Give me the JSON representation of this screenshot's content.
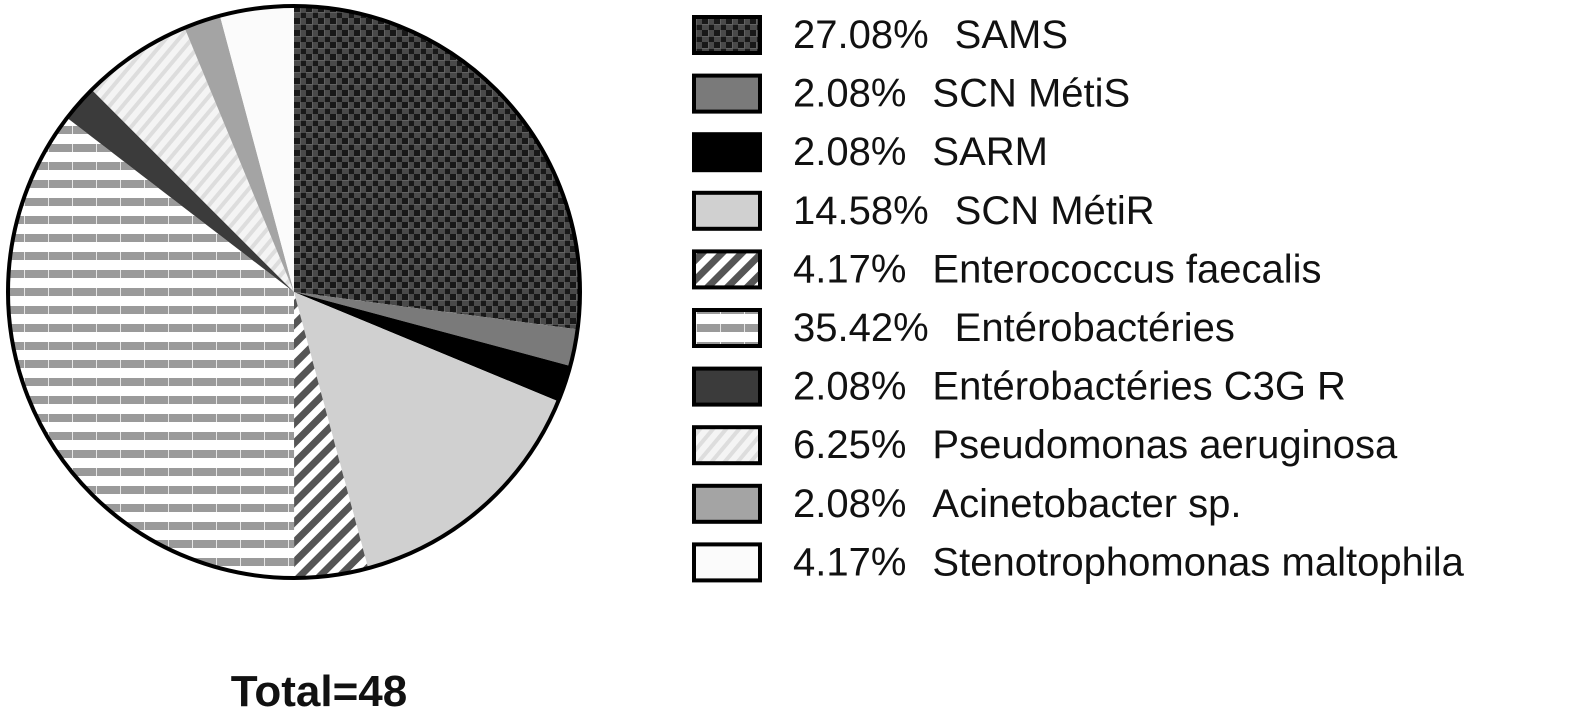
{
  "chart_data": {
    "type": "pie",
    "slices": [
      {
        "label": "SAMS",
        "pct_label": "27.08%",
        "value": 27.08,
        "pattern": "checker-dark"
      },
      {
        "label": "SCN MétiS",
        "pct_label": "2.08%",
        "value": 2.08,
        "pattern": "solid-gray"
      },
      {
        "label": "SARM",
        "pct_label": "2.08%",
        "value": 2.08,
        "pattern": "solid-black"
      },
      {
        "label": "SCN MétiR",
        "pct_label": "14.58%",
        "value": 14.58,
        "pattern": "solid-light-gray"
      },
      {
        "label": "Enterococcus faecalis",
        "pct_label": "4.17%",
        "value": 4.17,
        "pattern": "diagonal-stripes-bold"
      },
      {
        "label": "Entérobactéries",
        "pct_label": "35.42%",
        "value": 35.42,
        "pattern": "horizontal-stripes"
      },
      {
        "label": "Entérobactéries C3G R",
        "pct_label": "2.08%",
        "value": 2.08,
        "pattern": "solid-dark-gray"
      },
      {
        "label": "Pseudomonas aeruginosa",
        "pct_label": "6.25%",
        "value": 6.25,
        "pattern": "diagonal-stripes-light"
      },
      {
        "label": "Acinetobacter sp.",
        "pct_label": "2.08%",
        "value": 2.08,
        "pattern": "solid-mid-gray"
      },
      {
        "label": "Stenotrophomonas maltophila",
        "pct_label": "4.17%",
        "value": 4.17,
        "pattern": "solid-white"
      }
    ],
    "start_angle": "12 o'clock",
    "direction": "clockwise",
    "legend_position": "right",
    "total_label": "Total=48"
  }
}
